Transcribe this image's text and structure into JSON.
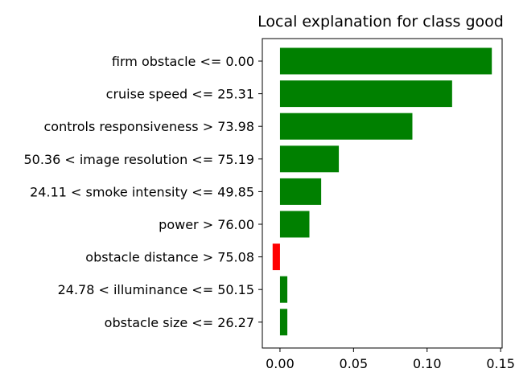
{
  "chart_data": {
    "type": "bar",
    "orientation": "horizontal",
    "title": "Local explanation for class good",
    "xlabel": "",
    "ylabel": "",
    "categories": [
      "firm obstacle <= 0.00",
      "cruise speed <= 25.31",
      "controls responsiveness > 73.98",
      "50.36 < image resolution <= 75.19",
      "24.11 < smoke intensity <= 49.85",
      "power > 76.00",
      "obstacle distance > 75.08",
      "24.78 < illuminance <= 50.15",
      "obstacle size <= 26.27"
    ],
    "values": [
      0.144,
      0.117,
      0.09,
      0.04,
      0.028,
      0.02,
      -0.005,
      0.005,
      0.005
    ],
    "xlim": [
      -0.012,
      0.151
    ],
    "xticks": [
      0.0,
      0.05,
      0.1,
      0.15
    ],
    "xtick_labels": [
      "0.00",
      "0.05",
      "0.10",
      "0.15"
    ],
    "grid": false,
    "colors": {
      "positive": "#008000",
      "negative": "#ff0000"
    }
  }
}
